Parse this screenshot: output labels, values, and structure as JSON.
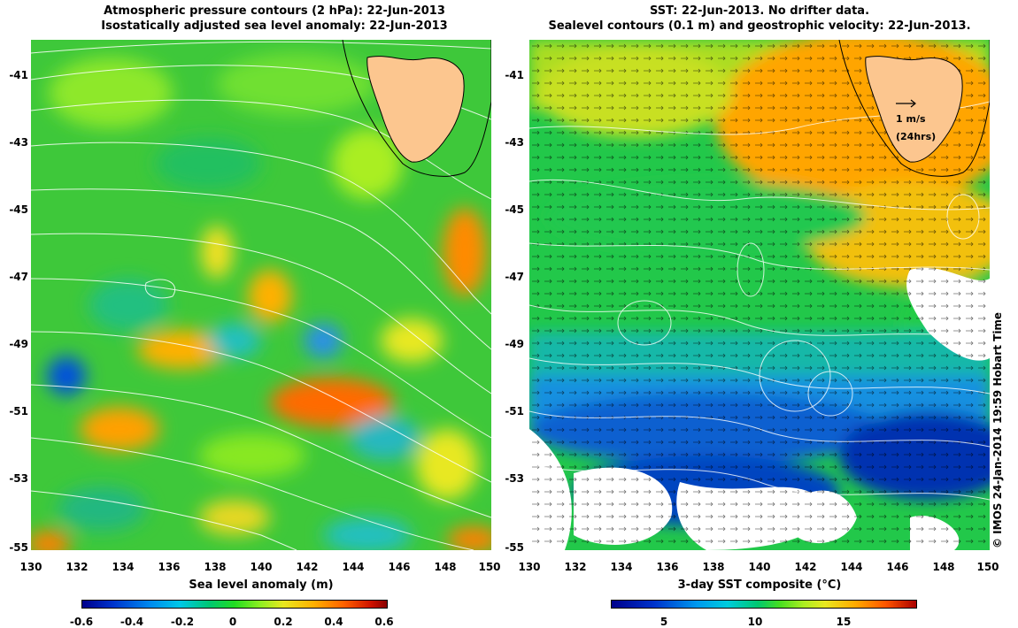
{
  "left": {
    "title_line1": "Atmospheric pressure contours (2 hPa): 22-Jun-2013",
    "title_line2": "Isostatically adjusted sea level anomaly: 22-Jun-2013",
    "colorbar_label": "Sea level anomaly (m)",
    "colorbar_ticks": [
      "-0.6",
      "-0.4",
      "-0.2",
      "0",
      "0.2",
      "0.4",
      "0.6"
    ]
  },
  "right": {
    "title_line1": "SST: 22-Jun-2013. No drifter data.",
    "title_line2": "Sealevel contours (0.1 m) and geostrophic velocity: 22-Jun-2013.",
    "colorbar_label": "3-day SST composite (°C)",
    "colorbar_ticks": [
      "5",
      "10",
      "15"
    ],
    "velocity_scale": "1 m/s",
    "velocity_period": "(24hrs)"
  },
  "axes": {
    "x_ticks": [
      "130",
      "132",
      "134",
      "136",
      "138",
      "140",
      "142",
      "144",
      "146",
      "148",
      "150"
    ],
    "y_ticks": [
      "-41",
      "-43",
      "-45",
      "-47",
      "-49",
      "-51",
      "-53",
      "-55"
    ]
  },
  "side_text": "© IMOS 24-Jan-2014 19:59 Hobart Time",
  "colors": {
    "land": "#fcc68f",
    "left_background": "#3ec83a",
    "contour": "#ffffff"
  }
}
